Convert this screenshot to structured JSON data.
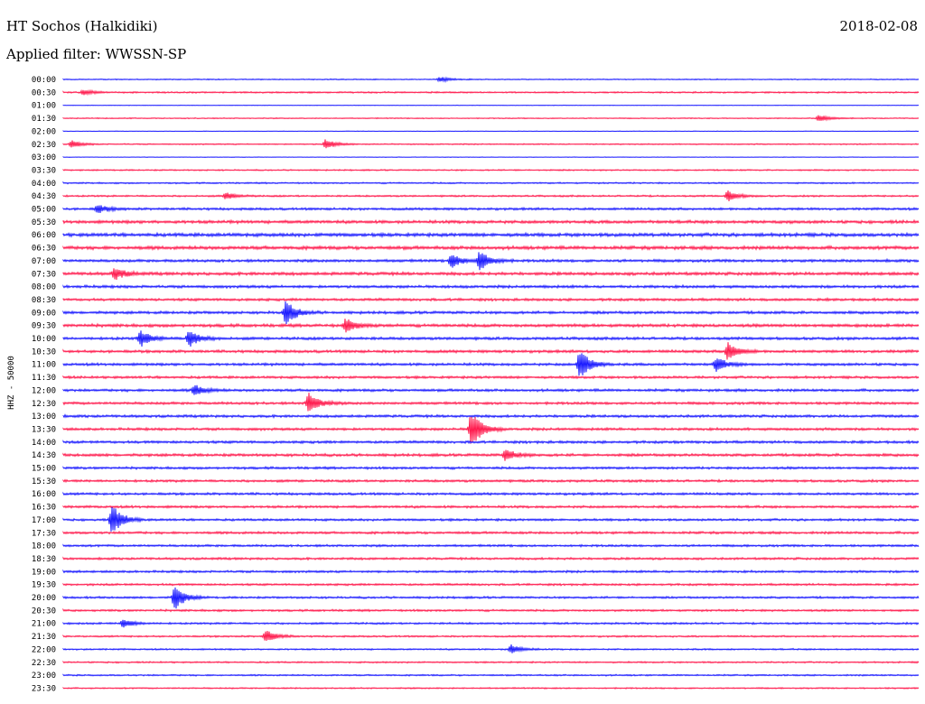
{
  "header": {
    "station": "HT Sochos (Halkidiki)",
    "date": "2018-02-08",
    "filter": "Applied filter: WWSSN-SP"
  },
  "channel_label": "HHZ - 50000",
  "colors": {
    "trace_a": "#1a1aff",
    "trace_b": "#ff1a4d",
    "text": "#000000"
  },
  "chart_data": {
    "type": "helicorder",
    "row_labels": [
      "00:00",
      "00:30",
      "01:00",
      "01:30",
      "02:00",
      "02:30",
      "03:00",
      "03:30",
      "04:00",
      "04:30",
      "05:00",
      "05:30",
      "06:00",
      "06:30",
      "07:00",
      "07:30",
      "08:00",
      "08:30",
      "09:00",
      "09:30",
      "10:00",
      "10:30",
      "11:00",
      "11:30",
      "12:00",
      "12:30",
      "13:00",
      "13:30",
      "14:00",
      "14:30",
      "15:00",
      "15:30",
      "16:00",
      "16:30",
      "17:00",
      "17:30",
      "18:00",
      "18:30",
      "19:00",
      "19:30",
      "20:00",
      "20:30",
      "21:00",
      "21:30",
      "22:00",
      "22:30",
      "23:00",
      "23:30"
    ],
    "row_minutes": 30,
    "noise_level": [
      0.6,
      0.9,
      0.3,
      0.6,
      0.3,
      0.7,
      0.3,
      0.8,
      0.9,
      1.0,
      1.4,
      1.8,
      2.0,
      2.0,
      1.6,
      1.8,
      1.6,
      1.5,
      1.6,
      1.8,
      1.6,
      1.6,
      1.5,
      1.4,
      1.5,
      1.5,
      1.5,
      1.5,
      1.5,
      1.6,
      1.4,
      1.4,
      1.4,
      1.4,
      1.3,
      1.4,
      1.3,
      1.3,
      1.3,
      1.2,
      1.2,
      1.2,
      1.1,
      1.0,
      0.9,
      0.9,
      0.9,
      0.8
    ],
    "events": [
      {
        "row": 0,
        "minute": 13.2,
        "amplitude": 3
      },
      {
        "row": 1,
        "minute": 0.7,
        "amplitude": 3
      },
      {
        "row": 3,
        "minute": 26.5,
        "amplitude": 4
      },
      {
        "row": 5,
        "minute": 0.3,
        "amplitude": 4
      },
      {
        "row": 5,
        "minute": 9.2,
        "amplitude": 6
      },
      {
        "row": 9,
        "minute": 5.7,
        "amplitude": 4
      },
      {
        "row": 9,
        "minute": 23.3,
        "amplitude": 6
      },
      {
        "row": 10,
        "minute": 1.2,
        "amplitude": 5
      },
      {
        "row": 14,
        "minute": 13.6,
        "amplitude": 8
      },
      {
        "row": 14,
        "minute": 14.6,
        "amplitude": 12
      },
      {
        "row": 15,
        "minute": 1.8,
        "amplitude": 7
      },
      {
        "row": 18,
        "minute": 7.8,
        "amplitude": 14
      },
      {
        "row": 19,
        "minute": 9.9,
        "amplitude": 8
      },
      {
        "row": 20,
        "minute": 2.7,
        "amplitude": 9
      },
      {
        "row": 20,
        "minute": 4.4,
        "amplitude": 10
      },
      {
        "row": 21,
        "minute": 23.3,
        "amplitude": 10
      },
      {
        "row": 22,
        "minute": 18.1,
        "amplitude": 18
      },
      {
        "row": 22,
        "minute": 22.9,
        "amplitude": 8
      },
      {
        "row": 24,
        "minute": 4.6,
        "amplitude": 6
      },
      {
        "row": 25,
        "minute": 8.6,
        "amplitude": 12
      },
      {
        "row": 27,
        "minute": 14.3,
        "amplitude": 22
      },
      {
        "row": 29,
        "minute": 15.5,
        "amplitude": 7
      },
      {
        "row": 34,
        "minute": 1.7,
        "amplitude": 18
      },
      {
        "row": 40,
        "minute": 3.9,
        "amplitude": 14
      },
      {
        "row": 42,
        "minute": 2.1,
        "amplitude": 5
      },
      {
        "row": 43,
        "minute": 7.1,
        "amplitude": 7
      },
      {
        "row": 44,
        "minute": 15.7,
        "amplitude": 5
      }
    ]
  }
}
